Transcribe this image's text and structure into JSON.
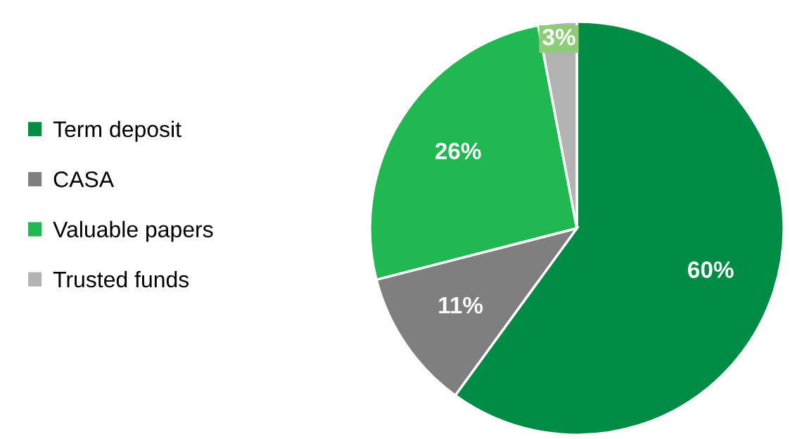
{
  "chart_data": {
    "type": "pie",
    "categories": [
      "Term deposit",
      "CASA",
      "Valuable papers",
      "Trusted funds"
    ],
    "values": [
      60,
      11,
      26,
      3
    ],
    "colors": [
      "#008c45",
      "#7f7f7f",
      "#21b852",
      "#b3b3b3"
    ],
    "value_labels": [
      "60%",
      "11%",
      "26%",
      "3%"
    ],
    "legend": "left"
  }
}
